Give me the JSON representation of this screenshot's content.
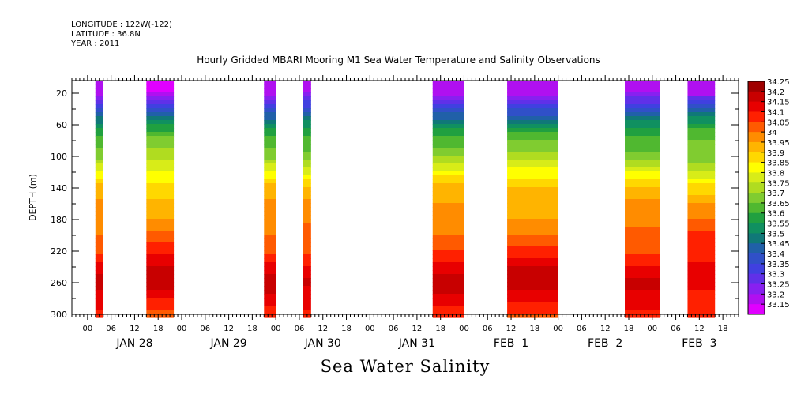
{
  "header": {
    "longitude": "LONGITUDE : 122W(-122)",
    "latitude": "LATITUDE : 36.8N",
    "year": "YEAR : 2011",
    "title": "Hourly Gridded MBARI Mooring M1 Sea Water Temperature and Salinity Observations"
  },
  "caption": "Sea Water Salinity",
  "chart_data": {
    "type": "heatmap",
    "title": "Hourly Gridded MBARI Mooring M1 Sea Water Temperature and Salinity Observations",
    "ylabel": "DEPTH (m)",
    "xlabel": "",
    "y_inverted": true,
    "ylim": [
      300,
      4
    ],
    "y_ticks": [
      20,
      60,
      100,
      140,
      180,
      220,
      260,
      300
    ],
    "x_tick_labels": [
      "00",
      "06",
      "12",
      "18",
      "00",
      "06",
      "12",
      "18",
      "00",
      "06",
      "12",
      "18",
      "00",
      "06",
      "12",
      "18",
      "00",
      "06",
      "12",
      "18",
      "00",
      "06",
      "12",
      "18",
      "00",
      "06",
      "12",
      "18"
    ],
    "x_day_labels": [
      "JAN 28",
      "JAN 29",
      "JAN 30",
      "JAN 31",
      "FEB  1",
      "FEB  2",
      "FEB  3"
    ],
    "x_range_hours": [
      -4,
      166
    ],
    "colorbar": {
      "levels": [
        "34.25",
        "34.2",
        "34.15",
        "34.1",
        "34.05",
        "34",
        "33.95",
        "33.9",
        "33.85",
        "33.8",
        "33.75",
        "33.7",
        "33.65",
        "33.6",
        "33.55",
        "33.5",
        "33.45",
        "33.4",
        "33.35",
        "33.3",
        "33.25",
        "33.2",
        "33.15"
      ],
      "colors": [
        "#a00000",
        "#c80000",
        "#e80000",
        "#ff2000",
        "#ff5a00",
        "#ff8c00",
        "#ffb400",
        "#ffd800",
        "#ffff00",
        "#d8ec18",
        "#b0dc20",
        "#80cc30",
        "#50b830",
        "#20a040",
        "#109060",
        "#107878",
        "#2060a8",
        "#3050c8",
        "#4040e0",
        "#6030e8",
        "#8820f0",
        "#b010f0",
        "#e000ff"
      ]
    },
    "data_segments_hours": [
      [
        2,
        4
      ],
      [
        15,
        22
      ],
      [
        45,
        48
      ],
      [
        55,
        57
      ],
      [
        88,
        96
      ],
      [
        107,
        120
      ],
      [
        137,
        146
      ],
      [
        153,
        160
      ]
    ],
    "salinity_profile": {
      "depth_m": [
        20,
        40,
        60,
        80,
        100,
        120,
        140,
        160,
        180,
        200,
        220,
        240,
        260,
        280,
        300
      ],
      "salinity": [
        33.22,
        33.42,
        33.6,
        33.7,
        33.74,
        33.84,
        33.94,
        33.99,
        34.03,
        34.08,
        34.12,
        34.18,
        34.22,
        34.14,
        34.11
      ]
    }
  }
}
